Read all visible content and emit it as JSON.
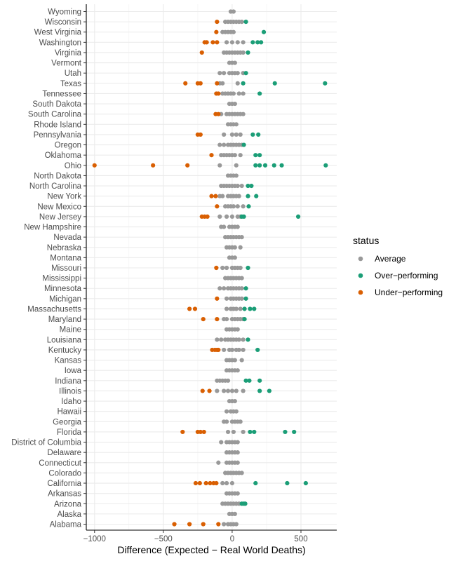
{
  "chart_data": {
    "type": "scatter",
    "xlabel": "Difference (Expected − Real World Deaths)",
    "ylabel": "",
    "xlim": [
      -1060,
      760
    ],
    "x_ticks": [
      -1000,
      -500,
      0,
      500
    ],
    "x_tick_labels": [
      "−1000",
      "−500",
      "0",
      "500"
    ],
    "grid": true,
    "legend": {
      "title": "status",
      "placement": "right",
      "entries": [
        {
          "key": "Average",
          "label": "Average",
          "color": "#999999"
        },
        {
          "key": "Over",
          "label": "Over−performing",
          "color": "#1b9e77"
        },
        {
          "key": "Under",
          "label": "Under−performing",
          "color": "#d95f02"
        }
      ]
    },
    "categories": [
      "Alabama",
      "Alaska",
      "Arizona",
      "Arkansas",
      "California",
      "Colorado",
      "Connecticut",
      "Delaware",
      "District of Columbia",
      "Florida",
      "Georgia",
      "Hawaii",
      "Idaho",
      "Illinois",
      "Indiana",
      "Iowa",
      "Kansas",
      "Kentucky",
      "Louisiana",
      "Maine",
      "Maryland",
      "Massachusetts",
      "Michigan",
      "Minnesota",
      "Mississippi",
      "Missouri",
      "Montana",
      "Nebraska",
      "Nevada",
      "New Hampshire",
      "New Jersey",
      "New Mexico",
      "New York",
      "North Carolina",
      "North Dakota",
      "Ohio",
      "Oklahoma",
      "Oregon",
      "Pennsylvania",
      "Rhode Island",
      "South Carolina",
      "South Dakota",
      "Tennessee",
      "Texas",
      "Utah",
      "Vermont",
      "Virginia",
      "Washington",
      "West Virginia",
      "Wisconsin",
      "Wyoming"
    ],
    "points": {
      "Alabama": {
        "Under": [
          -420,
          -310,
          -210,
          -100
        ],
        "Average": [
          -60,
          -30,
          -10,
          10,
          30
        ],
        "Over": []
      },
      "Alaska": {
        "Under": [],
        "Average": [
          -20,
          0,
          20
        ],
        "Over": []
      },
      "Arizona": {
        "Under": [],
        "Average": [
          -70,
          -50,
          -30,
          -10,
          10,
          30,
          50
        ],
        "Over": [
          70,
          85,
          95
        ]
      },
      "Arkansas": {
        "Under": [],
        "Average": [
          -40,
          -20,
          0,
          20,
          40
        ],
        "Over": []
      },
      "California": {
        "Under": [
          -265,
          -235,
          -190,
          -160,
          -135,
          -115
        ],
        "Average": [
          -70,
          -40,
          0
        ],
        "Over": [
          170,
          400,
          535
        ]
      },
      "Colorado": {
        "Under": [],
        "Average": [
          -50,
          -30,
          -10,
          10,
          30,
          50,
          70
        ],
        "Over": []
      },
      "Connecticut": {
        "Under": [],
        "Average": [
          -100,
          -40,
          -20,
          0,
          20,
          40
        ],
        "Over": []
      },
      "Delaware": {
        "Under": [],
        "Average": [
          -40,
          -20,
          0,
          20,
          40
        ],
        "Over": []
      },
      "District of Columbia": {
        "Under": [],
        "Average": [
          -80,
          -40,
          -20,
          0,
          20,
          40
        ],
        "Over": []
      },
      "Florida": {
        "Under": [
          -360,
          -250,
          -230,
          -205
        ],
        "Average": [
          -30,
          10,
          80
        ],
        "Over": [
          130,
          160,
          385,
          450
        ]
      },
      "Georgia": {
        "Under": [],
        "Average": [
          -60,
          -40,
          0,
          20,
          40,
          60
        ],
        "Over": []
      },
      "Hawaii": {
        "Under": [],
        "Average": [
          -40,
          -10,
          10,
          30
        ],
        "Over": []
      },
      "Idaho": {
        "Under": [],
        "Average": [
          -20,
          0,
          20
        ],
        "Over": []
      },
      "Illinois": {
        "Under": [
          -215,
          -165
        ],
        "Average": [
          -110,
          -60,
          -30,
          0,
          30,
          80
        ],
        "Over": [
          200,
          270
        ]
      },
      "Indiana": {
        "Under": [],
        "Average": [
          -110,
          -90,
          -70,
          -50,
          -30
        ],
        "Over": [
          100,
          125,
          200
        ]
      },
      "Iowa": {
        "Under": [],
        "Average": [
          -40,
          -20,
          0,
          20,
          40
        ],
        "Over": []
      },
      "Kansas": {
        "Under": [],
        "Average": [
          -40,
          -20,
          0,
          20,
          70
        ],
        "Over": []
      },
      "Kentucky": {
        "Under": [
          -145,
          -125,
          -110,
          -100
        ],
        "Average": [
          -60,
          -20,
          0,
          30,
          50,
          80
        ],
        "Over": [
          185
        ]
      },
      "Louisiana": {
        "Under": [],
        "Average": [
          -110,
          -80,
          -50,
          -30,
          -10,
          10,
          30,
          50,
          80
        ],
        "Over": [
          115
        ]
      },
      "Maine": {
        "Under": [],
        "Average": [
          -40,
          -20,
          0,
          20,
          40
        ],
        "Over": []
      },
      "Maryland": {
        "Under": [
          -210,
          -110
        ],
        "Average": [
          -60,
          -40,
          0,
          20,
          40,
          60,
          80
        ],
        "Over": [
          90
        ]
      },
      "Massachusetts": {
        "Under": [
          -310,
          -270
        ],
        "Average": [
          -40,
          -10,
          10,
          30,
          60
        ],
        "Over": [
          90,
          130,
          160
        ]
      },
      "Michigan": {
        "Under": [
          -110
        ],
        "Average": [
          -40,
          -10,
          10,
          30,
          50,
          70
        ],
        "Over": [
          100
        ]
      },
      "Minnesota": {
        "Under": [],
        "Average": [
          -90,
          -60,
          -30,
          -10,
          10,
          30,
          50,
          70
        ],
        "Over": [
          100
        ]
      },
      "Mississippi": {
        "Under": [],
        "Average": [
          -50,
          -30,
          -10,
          10,
          30,
          50,
          70
        ],
        "Over": []
      },
      "Missouri": {
        "Under": [
          -115
        ],
        "Average": [
          -70,
          -40,
          0,
          20,
          40,
          60
        ],
        "Over": [
          115
        ]
      },
      "Montana": {
        "Under": [],
        "Average": [
          -20,
          0,
          20
        ],
        "Over": []
      },
      "Nebraska": {
        "Under": [],
        "Average": [
          -40,
          -20,
          0,
          20,
          60
        ],
        "Over": []
      },
      "Nevada": {
        "Under": [],
        "Average": [
          -50,
          -30,
          -10,
          10,
          30,
          50,
          70
        ],
        "Over": []
      },
      "New Hampshire": {
        "Under": [],
        "Average": [
          -80,
          -60,
          -20,
          0,
          20,
          40
        ],
        "Over": []
      },
      "New Jersey": {
        "Under": [
          -220,
          -200,
          -180
        ],
        "Average": [
          -90,
          -40,
          0,
          40,
          60
        ],
        "Over": [
          70,
          85,
          480
        ]
      },
      "New Mexico": {
        "Under": [
          -110
        ],
        "Average": [
          -50,
          -30,
          -10,
          10,
          40,
          80
        ],
        "Over": [
          120
        ]
      },
      "New York": {
        "Under": [
          -150,
          -120
        ],
        "Average": [
          -90,
          -70,
          -30,
          -10,
          10,
          30,
          50
        ],
        "Over": [
          115,
          175
        ]
      },
      "North Carolina": {
        "Under": [],
        "Average": [
          -80,
          -60,
          -40,
          -20,
          0,
          20,
          40,
          70
        ],
        "Over": [
          115,
          140
        ]
      },
      "North Dakota": {
        "Under": [],
        "Average": [
          -30,
          -10,
          10,
          30
        ],
        "Over": []
      },
      "Ohio": {
        "Under": [
          -1000,
          -575,
          -325
        ],
        "Average": [
          -90,
          30
        ],
        "Over": [
          170,
          200,
          240,
          305,
          360,
          680
        ]
      },
      "Oklahoma": {
        "Under": [
          -150
        ],
        "Average": [
          -80,
          -60,
          -40,
          -20,
          0,
          20,
          60
        ],
        "Over": [
          170,
          200
        ]
      },
      "Oregon": {
        "Under": [],
        "Average": [
          -90,
          -60,
          -30,
          -10,
          10,
          30,
          50,
          70
        ],
        "Over": [
          85
        ]
      },
      "Pennsylvania": {
        "Under": [
          -250,
          -230
        ],
        "Average": [
          -60,
          0,
          30,
          60
        ],
        "Over": [
          150,
          190
        ]
      },
      "Rhode Island": {
        "Under": [],
        "Average": [
          -30,
          -10,
          10,
          30
        ],
        "Over": []
      },
      "South Carolina": {
        "Under": [
          -120,
          -100
        ],
        "Average": [
          -80,
          -40,
          -20,
          0,
          20,
          40,
          60,
          80
        ],
        "Over": []
      },
      "South Dakota": {
        "Under": [],
        "Average": [
          -20,
          0,
          20
        ],
        "Over": []
      },
      "Tennessee": {
        "Under": [
          -115,
          -100
        ],
        "Average": [
          -70,
          -50,
          -30,
          -10,
          10,
          50,
          80
        ],
        "Over": [
          200
        ]
      },
      "Texas": {
        "Under": [
          -340,
          -250,
          -230,
          -110
        ],
        "Average": [
          -90,
          -70,
          40
        ],
        "Over": [
          80,
          310,
          675
        ]
      },
      "Utah": {
        "Under": [],
        "Average": [
          -90,
          -60,
          -20,
          0,
          20,
          40,
          80
        ],
        "Over": [
          100
        ]
      },
      "Vermont": {
        "Under": [],
        "Average": [
          -20,
          0,
          20
        ],
        "Over": []
      },
      "Virginia": {
        "Under": [
          -220
        ],
        "Average": [
          -60,
          -40,
          -20,
          0,
          20,
          40,
          60,
          80
        ],
        "Over": [
          115
        ]
      },
      "Washington": {
        "Under": [
          -200,
          -185,
          -140,
          -110
        ],
        "Average": [
          -40,
          0,
          40,
          80
        ],
        "Over": [
          150,
          185,
          210
        ]
      },
      "West Virginia": {
        "Under": [
          -115
        ],
        "Average": [
          -70,
          -50,
          -30,
          -10,
          10
        ],
        "Over": [
          230
        ]
      },
      "Wisconsin": {
        "Under": [
          -110
        ],
        "Average": [
          -50,
          -30,
          -10,
          10,
          30,
          50,
          70
        ],
        "Over": [
          100
        ]
      },
      "Wyoming": {
        "Under": [],
        "Average": [
          -10,
          10
        ],
        "Over": []
      }
    }
  }
}
